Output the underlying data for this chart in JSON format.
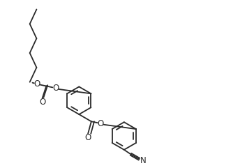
{
  "bg_color": "#ffffff",
  "line_color": "#2a2a2a",
  "line_width": 1.3,
  "font_size": 8.5,
  "fig_width": 3.54,
  "fig_height": 2.41,
  "dpi": 100,
  "xlim": [
    0,
    10.5
  ],
  "ylim": [
    0,
    7.5
  ]
}
